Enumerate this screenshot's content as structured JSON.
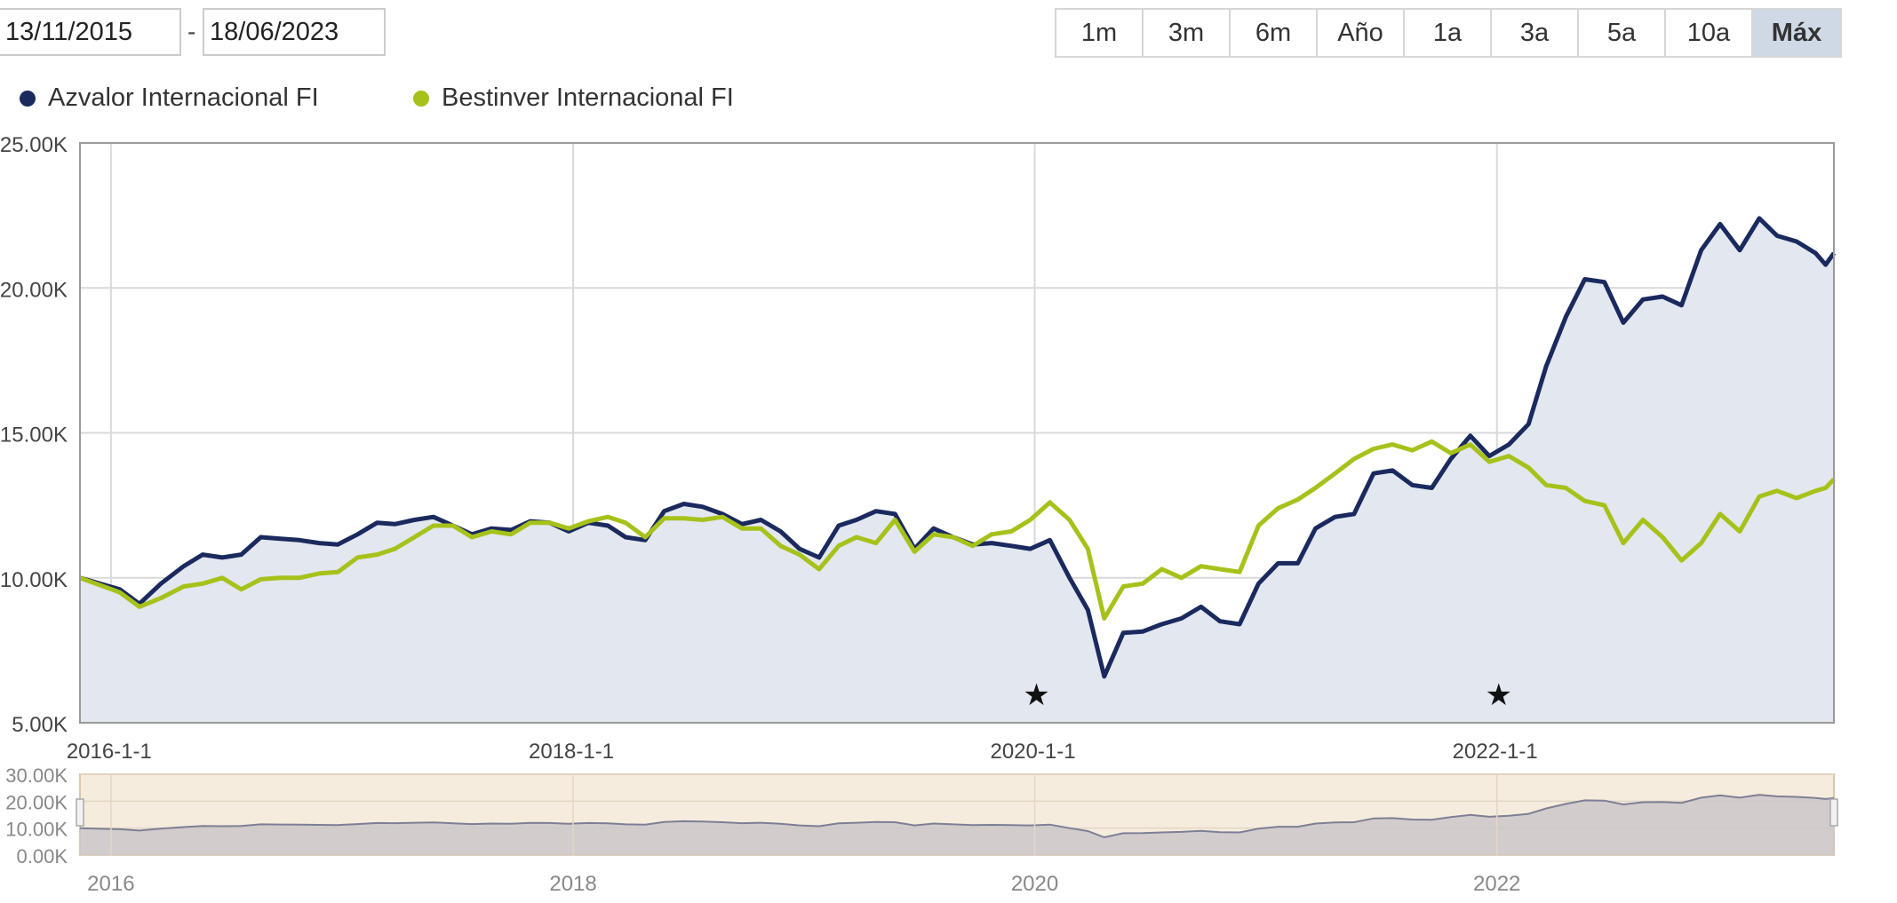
{
  "date_range": {
    "from": "13/11/2015",
    "separator": "-",
    "to": "18/06/2023"
  },
  "range_buttons": [
    {
      "label": "1m",
      "active": false
    },
    {
      "label": "3m",
      "active": false
    },
    {
      "label": "6m",
      "active": false
    },
    {
      "label": "Año",
      "active": false
    },
    {
      "label": "1a",
      "active": false
    },
    {
      "label": "3a",
      "active": false
    },
    {
      "label": "5a",
      "active": false
    },
    {
      "label": "10a",
      "active": false
    },
    {
      "label": "Máx",
      "active": true
    }
  ],
  "colors": {
    "azvalor": "#1a2a5e",
    "bestinver": "#a6c21a",
    "area_fill": "#e3e7f0",
    "navigator_bg": "#f6ecdd",
    "navigator_fill": "#c9c5c8"
  },
  "chart_data": {
    "type": "line",
    "x_type": "date",
    "xlim": [
      "2015-11-13",
      "2023-06-18"
    ],
    "ylim": [
      5000,
      25000
    ],
    "y_ticks": [
      "25.00K",
      "20.00K",
      "15.00K",
      "10.00K",
      "5.00K"
    ],
    "y_tick_values": [
      25000,
      20000,
      15000,
      10000,
      5000
    ],
    "x_ticks": [
      "2016-1-1",
      "2018-1-1",
      "2020-1-1",
      "2022-1-1"
    ],
    "grid": true,
    "legend_position": "top-left",
    "series": [
      {
        "name": "Azvalor Internacional FI",
        "color": "#1a2a5e",
        "filled": true,
        "points": [
          [
            "2015-11-13",
            10000
          ],
          [
            "2016-01-15",
            9600
          ],
          [
            "2016-02-15",
            9100
          ],
          [
            "2016-03-20",
            9800
          ],
          [
            "2016-04-25",
            10400
          ],
          [
            "2016-05-25",
            10800
          ],
          [
            "2016-06-25",
            10700
          ],
          [
            "2016-07-25",
            10800
          ],
          [
            "2016-08-25",
            11400
          ],
          [
            "2016-09-25",
            11350
          ],
          [
            "2016-10-25",
            11300
          ],
          [
            "2016-11-25",
            11200
          ],
          [
            "2016-12-25",
            11150
          ],
          [
            "2017-01-25",
            11500
          ],
          [
            "2017-02-25",
            11900
          ],
          [
            "2017-03-25",
            11850
          ],
          [
            "2017-04-25",
            12000
          ],
          [
            "2017-05-25",
            12100
          ],
          [
            "2017-06-25",
            11800
          ],
          [
            "2017-07-25",
            11500
          ],
          [
            "2017-08-25",
            11700
          ],
          [
            "2017-09-25",
            11650
          ],
          [
            "2017-10-25",
            11950
          ],
          [
            "2017-11-25",
            11900
          ],
          [
            "2017-12-25",
            11600
          ],
          [
            "2018-01-25",
            11900
          ],
          [
            "2018-02-25",
            11800
          ],
          [
            "2018-03-25",
            11400
          ],
          [
            "2018-04-25",
            11300
          ],
          [
            "2018-05-25",
            12300
          ],
          [
            "2018-06-25",
            12550
          ],
          [
            "2018-07-25",
            12450
          ],
          [
            "2018-08-25",
            12200
          ],
          [
            "2018-09-25",
            11850
          ],
          [
            "2018-10-25",
            12000
          ],
          [
            "2018-11-25",
            11600
          ],
          [
            "2018-12-25",
            11000
          ],
          [
            "2019-01-25",
            10700
          ],
          [
            "2019-02-25",
            11800
          ],
          [
            "2019-03-25",
            12000
          ],
          [
            "2019-04-25",
            12300
          ],
          [
            "2019-05-25",
            12200
          ],
          [
            "2019-06-25",
            11000
          ],
          [
            "2019-07-25",
            11700
          ],
          [
            "2019-08-25",
            11400
          ],
          [
            "2019-09-25",
            11150
          ],
          [
            "2019-10-25",
            11200
          ],
          [
            "2019-11-25",
            11100
          ],
          [
            "2019-12-25",
            11000
          ],
          [
            "2020-01-25",
            11300
          ],
          [
            "2020-02-25",
            10000
          ],
          [
            "2020-03-25",
            8900
          ],
          [
            "2020-04-20",
            6600
          ],
          [
            "2020-05-20",
            8100
          ],
          [
            "2020-06-20",
            8150
          ],
          [
            "2020-07-20",
            8400
          ],
          [
            "2020-08-20",
            8600
          ],
          [
            "2020-09-20",
            9000
          ],
          [
            "2020-10-20",
            8500
          ],
          [
            "2020-11-20",
            8400
          ],
          [
            "2020-12-20",
            9800
          ],
          [
            "2021-01-20",
            10500
          ],
          [
            "2021-02-20",
            10500
          ],
          [
            "2021-03-20",
            11700
          ],
          [
            "2021-04-20",
            12100
          ],
          [
            "2021-05-20",
            12200
          ],
          [
            "2021-06-20",
            13600
          ],
          [
            "2021-07-20",
            13700
          ],
          [
            "2021-08-20",
            13200
          ],
          [
            "2021-09-20",
            13100
          ],
          [
            "2021-10-20",
            14100
          ],
          [
            "2021-11-20",
            14900
          ],
          [
            "2021-12-20",
            14200
          ],
          [
            "2022-01-20",
            14600
          ],
          [
            "2022-02-20",
            15300
          ],
          [
            "2022-03-20",
            17300
          ],
          [
            "2022-04-20",
            19000
          ],
          [
            "2022-05-20",
            20300
          ],
          [
            "2022-06-20",
            20200
          ],
          [
            "2022-07-20",
            18800
          ],
          [
            "2022-08-20",
            19600
          ],
          [
            "2022-09-20",
            19700
          ],
          [
            "2022-10-20",
            19400
          ],
          [
            "2022-11-20",
            21300
          ],
          [
            "2022-12-20",
            22200
          ],
          [
            "2023-01-20",
            21300
          ],
          [
            "2023-02-20",
            22400
          ],
          [
            "2023-03-20",
            21800
          ],
          [
            "2023-04-20",
            21600
          ],
          [
            "2023-05-20",
            21200
          ],
          [
            "2023-06-05",
            20800
          ],
          [
            "2023-06-18",
            21200
          ]
        ]
      },
      {
        "name": "Bestinver Internacional FI",
        "color": "#a6c21a",
        "filled": false,
        "points": [
          [
            "2015-11-13",
            10000
          ],
          [
            "2016-01-15",
            9500
          ],
          [
            "2016-02-15",
            9000
          ],
          [
            "2016-03-20",
            9300
          ],
          [
            "2016-04-25",
            9700
          ],
          [
            "2016-05-25",
            9800
          ],
          [
            "2016-06-25",
            10000
          ],
          [
            "2016-07-25",
            9600
          ],
          [
            "2016-08-25",
            9950
          ],
          [
            "2016-09-25",
            10000
          ],
          [
            "2016-10-25",
            10000
          ],
          [
            "2016-11-25",
            10150
          ],
          [
            "2016-12-25",
            10200
          ],
          [
            "2017-01-25",
            10700
          ],
          [
            "2017-02-25",
            10800
          ],
          [
            "2017-03-25",
            11000
          ],
          [
            "2017-04-25",
            11400
          ],
          [
            "2017-05-25",
            11800
          ],
          [
            "2017-06-25",
            11800
          ],
          [
            "2017-07-25",
            11400
          ],
          [
            "2017-08-25",
            11600
          ],
          [
            "2017-09-25",
            11500
          ],
          [
            "2017-10-25",
            11900
          ],
          [
            "2017-11-25",
            11900
          ],
          [
            "2017-12-25",
            11700
          ],
          [
            "2018-01-25",
            11950
          ],
          [
            "2018-02-25",
            12100
          ],
          [
            "2018-03-25",
            11900
          ],
          [
            "2018-04-25",
            11400
          ],
          [
            "2018-05-25",
            12050
          ],
          [
            "2018-06-25",
            12050
          ],
          [
            "2018-07-25",
            12000
          ],
          [
            "2018-08-25",
            12100
          ],
          [
            "2018-09-25",
            11700
          ],
          [
            "2018-10-25",
            11700
          ],
          [
            "2018-11-25",
            11100
          ],
          [
            "2018-12-25",
            10800
          ],
          [
            "2019-01-25",
            10300
          ],
          [
            "2019-02-25",
            11100
          ],
          [
            "2019-03-25",
            11400
          ],
          [
            "2019-04-25",
            11200
          ],
          [
            "2019-05-25",
            12000
          ],
          [
            "2019-06-25",
            10900
          ],
          [
            "2019-07-25",
            11500
          ],
          [
            "2019-08-25",
            11400
          ],
          [
            "2019-09-25",
            11100
          ],
          [
            "2019-10-25",
            11500
          ],
          [
            "2019-11-25",
            11600
          ],
          [
            "2019-12-25",
            12000
          ],
          [
            "2020-01-25",
            12600
          ],
          [
            "2020-02-25",
            12000
          ],
          [
            "2020-03-25",
            11000
          ],
          [
            "2020-04-20",
            8600
          ],
          [
            "2020-05-20",
            9700
          ],
          [
            "2020-06-20",
            9800
          ],
          [
            "2020-07-20",
            10300
          ],
          [
            "2020-08-20",
            10000
          ],
          [
            "2020-09-20",
            10400
          ],
          [
            "2020-10-20",
            10300
          ],
          [
            "2020-11-20",
            10200
          ],
          [
            "2020-12-20",
            11800
          ],
          [
            "2021-01-20",
            12400
          ],
          [
            "2021-02-20",
            12700
          ],
          [
            "2021-03-20",
            13100
          ],
          [
            "2021-04-20",
            13600
          ],
          [
            "2021-05-20",
            14100
          ],
          [
            "2021-06-20",
            14450
          ],
          [
            "2021-07-20",
            14600
          ],
          [
            "2021-08-20",
            14400
          ],
          [
            "2021-09-20",
            14700
          ],
          [
            "2021-10-20",
            14300
          ],
          [
            "2021-11-20",
            14600
          ],
          [
            "2021-12-20",
            14000
          ],
          [
            "2022-01-20",
            14200
          ],
          [
            "2022-02-20",
            13800
          ],
          [
            "2022-03-20",
            13200
          ],
          [
            "2022-04-20",
            13100
          ],
          [
            "2022-05-20",
            12650
          ],
          [
            "2022-06-20",
            12500
          ],
          [
            "2022-07-20",
            11200
          ],
          [
            "2022-08-20",
            12000
          ],
          [
            "2022-09-20",
            11400
          ],
          [
            "2022-10-20",
            10600
          ],
          [
            "2022-11-20",
            11200
          ],
          [
            "2022-12-20",
            12200
          ],
          [
            "2023-01-20",
            11600
          ],
          [
            "2023-02-20",
            12800
          ],
          [
            "2023-03-20",
            13000
          ],
          [
            "2023-04-20",
            12750
          ],
          [
            "2023-05-20",
            13000
          ],
          [
            "2023-06-05",
            13100
          ],
          [
            "2023-06-18",
            13400
          ]
        ]
      }
    ],
    "annotations": [
      {
        "symbol": "★",
        "x": "2020-01-01"
      },
      {
        "symbol": "★",
        "x": "2022-01-01"
      }
    ],
    "navigator": {
      "ylim": [
        0,
        30000
      ],
      "y_ticks": [
        "30.00K",
        "20.00K",
        "10.00K",
        "0.00K"
      ],
      "y_tick_values": [
        30000,
        20000,
        10000,
        0
      ],
      "x_ticks": [
        "2016",
        "2018",
        "2020",
        "2022"
      ]
    }
  }
}
